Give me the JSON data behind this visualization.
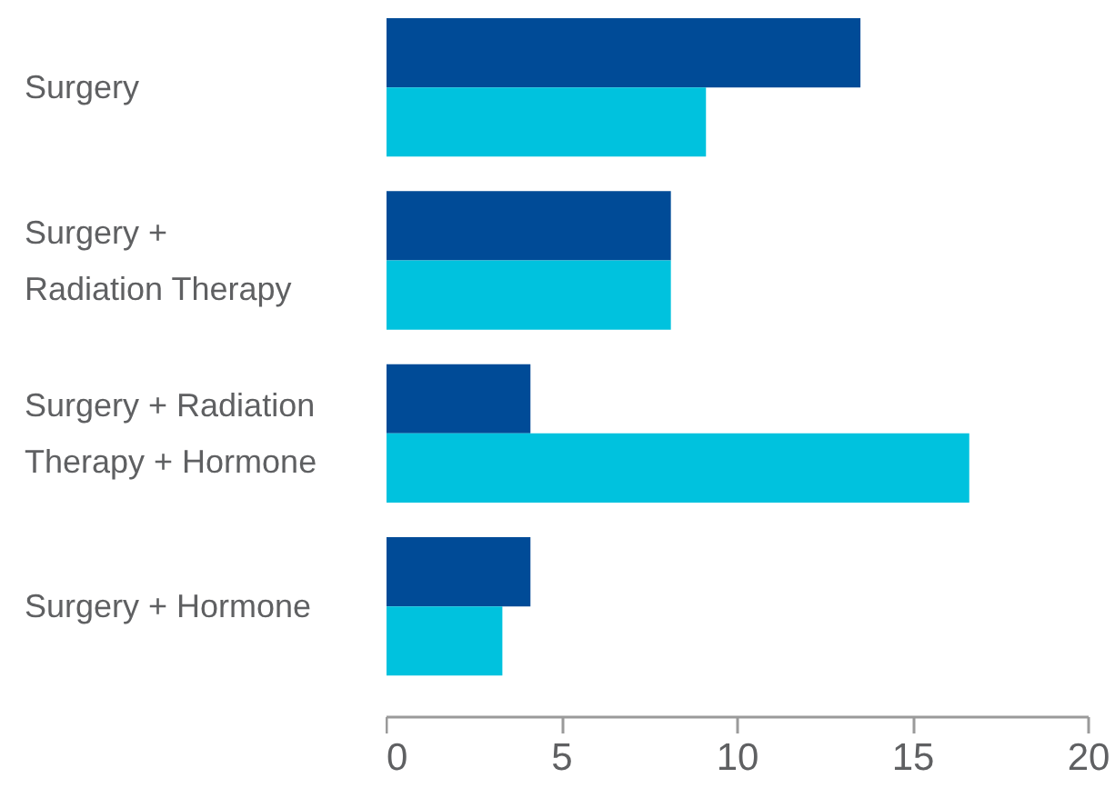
{
  "chart_data": {
    "type": "bar",
    "orientation": "horizontal",
    "categories": [
      "Surgery",
      "Surgery +\nRadiation Therapy",
      "Surgery + Radiation\nTherapy + Hormone",
      "Surgery + Hormone"
    ],
    "series": [
      {
        "color": "#004b97",
        "values": [
          13.5,
          8.1,
          4.1,
          4.1
        ]
      },
      {
        "color": "#00c2de",
        "values": [
          9.1,
          8.1,
          16.6,
          3.3
        ]
      }
    ],
    "xlim": [
      0,
      20
    ],
    "xticks": [
      0,
      5,
      10,
      15,
      20
    ],
    "grid": false
  }
}
